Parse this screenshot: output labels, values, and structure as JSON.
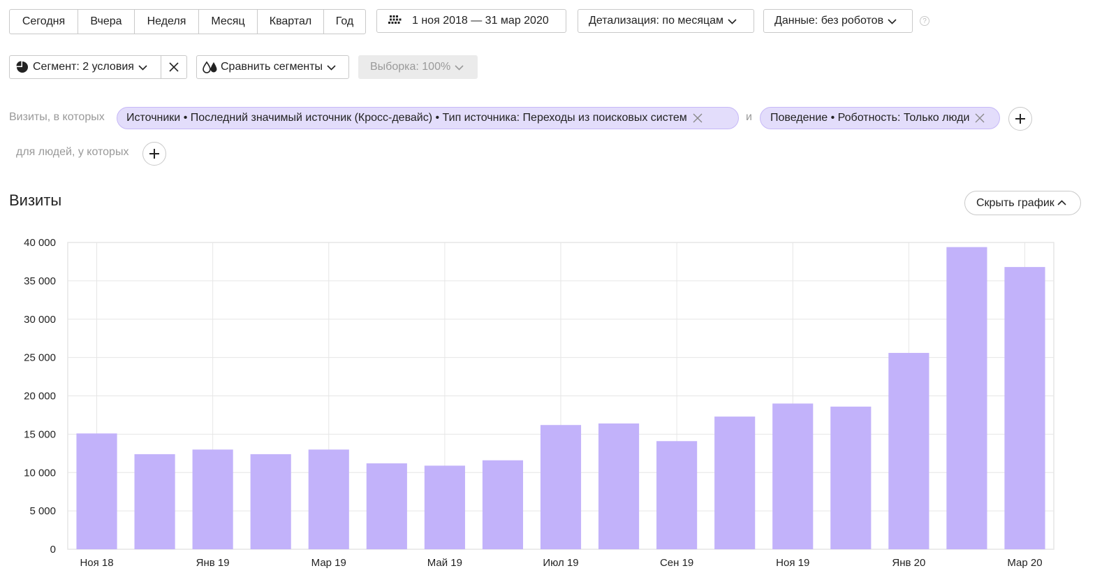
{
  "toolbar": {
    "periods": [
      "Сегодня",
      "Вчера",
      "Неделя",
      "Месяц",
      "Квартал",
      "Год"
    ],
    "date_range": "1 ноя 2018 — 31 мар 2020",
    "detail": "Детализация: по месяцам",
    "data_filter": "Данные: без роботов",
    "help": "?"
  },
  "segment_bar": {
    "segment": "Сегмент: 2 условия",
    "compare": "Сравнить сегменты",
    "sample": "Выборка: 100%"
  },
  "filters": {
    "visits_label": "Визиты, в которых",
    "and_label": "и",
    "people_label": "для людей, у которых",
    "condition_1": "Источники • Последний значимый источник (Кросс-девайс) • Тип источника: Переходы из поисковых систем",
    "condition_2": "Поведение • Роботность: Только люди"
  },
  "chart_header": {
    "title": "Визиты",
    "hide_button": "Скрыть график"
  },
  "colors": {
    "bar": "#c2b2fa",
    "pill_bg": "#e3ddfb",
    "grid": "#e6e6e6"
  },
  "chart_data": {
    "type": "bar",
    "title": "Визиты",
    "categories": [
      "Ноя 18",
      "Дек 18",
      "Янв 19",
      "Фев 19",
      "Мар 19",
      "Апр 19",
      "Май 19",
      "Июн 19",
      "Июл 19",
      "Авг 19",
      "Сен 19",
      "Окт 19",
      "Ноя 19",
      "Дек 19",
      "Янв 20",
      "Фев 20",
      "Мар 20"
    ],
    "values": [
      15100,
      12400,
      13000,
      12400,
      13000,
      11200,
      10900,
      11600,
      16200,
      16400,
      14100,
      17300,
      19000,
      18600,
      25600,
      39400,
      36800
    ],
    "x_tick_labels": [
      "Ноя 18",
      "Янв 19",
      "Мар 19",
      "Май 19",
      "Июл 19",
      "Сен 19",
      "Ноя 19",
      "Янв 20",
      "Мар 20"
    ],
    "y_ticks": [
      0,
      5000,
      10000,
      15000,
      20000,
      25000,
      30000,
      35000,
      40000
    ],
    "y_tick_labels": [
      "0",
      "5 000",
      "10 000",
      "15 000",
      "20 000",
      "25 000",
      "30 000",
      "35 000",
      "40 000"
    ],
    "ylim": [
      0,
      40000
    ],
    "grid": true,
    "legend": "none"
  }
}
